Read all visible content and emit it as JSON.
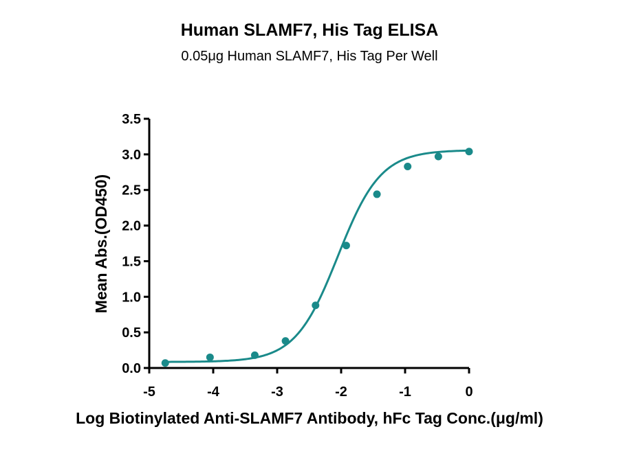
{
  "chart_data": {
    "type": "scatter",
    "title": "Human SLAMF7, His Tag ELISA",
    "subtitle": "0.05μg Human SLAMF7, His Tag Per Well",
    "xlabel": "Log Biotinylated Anti-SLAMF7 Antibody, hFc Tag Conc.(μg/ml)",
    "ylabel": "Mean Abs.(OD450)",
    "xlim": [
      -5,
      0
    ],
    "ylim": [
      0,
      3.5
    ],
    "xticks": [
      "-5",
      "-4",
      "-3",
      "-2",
      "-1",
      "0"
    ],
    "yticks": [
      "0.0",
      "0.5",
      "1.0",
      "1.5",
      "2.0",
      "2.5",
      "3.0",
      "3.5"
    ],
    "grid": false,
    "color": "#1a8a8a",
    "series": [
      {
        "x": [
          -4.75,
          -4.05,
          -3.35,
          -2.87,
          -2.4,
          -1.92,
          -1.44,
          -0.96,
          -0.48,
          0
        ],
        "y": [
          0.07,
          0.15,
          0.18,
          0.38,
          0.88,
          1.72,
          2.44,
          2.83,
          2.97,
          3.04
        ],
        "fit": "4PL sigmoid"
      }
    ]
  }
}
